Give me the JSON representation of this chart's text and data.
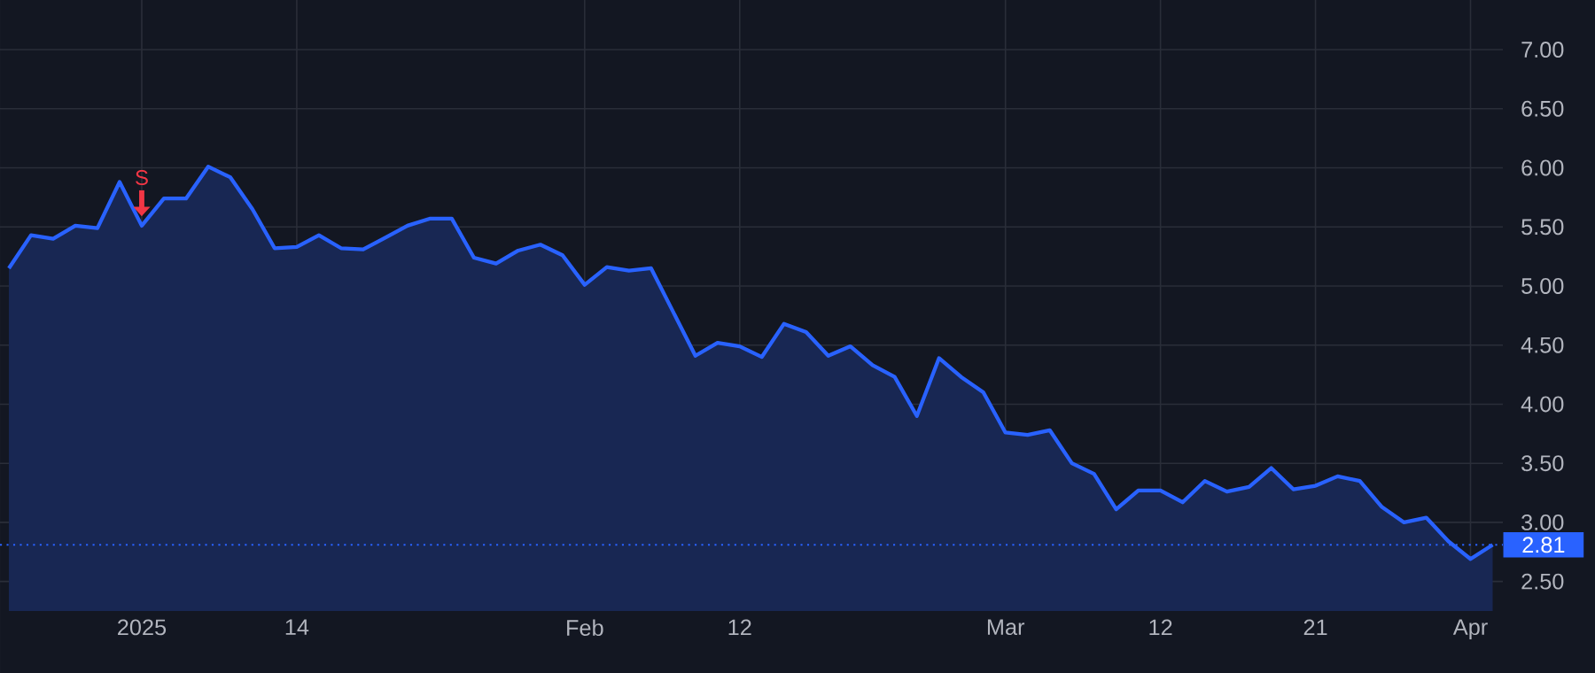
{
  "chart_data": {
    "type": "area",
    "categories": [
      null,
      null,
      null,
      null,
      null,
      null,
      "2025",
      null,
      null,
      null,
      null,
      null,
      null,
      "14",
      null,
      null,
      null,
      null,
      null,
      null,
      null,
      null,
      null,
      null,
      null,
      null,
      "Feb",
      null,
      null,
      null,
      null,
      null,
      null,
      "12",
      null,
      null,
      null,
      null,
      null,
      null,
      null,
      null,
      null,
      null,
      null,
      "Mar",
      null,
      null,
      null,
      null,
      null,
      null,
      "12",
      null,
      null,
      null,
      null,
      null,
      null,
      "21",
      null,
      null,
      null,
      null,
      null,
      null,
      "Apr",
      null
    ],
    "series": [
      {
        "color": "#2962ff",
        "values": [
          5.15,
          5.43,
          5.4,
          5.51,
          5.49,
          5.88,
          5.51,
          5.74,
          5.74,
          6.01,
          5.92,
          5.65,
          5.32,
          5.33,
          5.43,
          5.32,
          5.31,
          5.41,
          5.51,
          5.57,
          5.57,
          5.24,
          5.19,
          5.3,
          5.35,
          5.26,
          5.01,
          5.16,
          5.13,
          5.15,
          4.78,
          4.41,
          4.52,
          4.49,
          4.4,
          4.68,
          4.61,
          4.41,
          4.49,
          4.33,
          4.23,
          3.9,
          4.39,
          4.23,
          4.1,
          3.76,
          3.74,
          3.78,
          3.5,
          3.41,
          3.11,
          3.27,
          3.27,
          3.17,
          3.35,
          3.26,
          3.3,
          3.46,
          3.28,
          3.31,
          3.39,
          3.35,
          3.13,
          3.0,
          3.04,
          2.84,
          2.69,
          2.81
        ]
      }
    ],
    "ylim": [
      2.25,
      7.42
    ],
    "yticks": [
      {
        "value": 2.5,
        "label": "2.50"
      },
      {
        "value": 3,
        "label": "3.00"
      },
      {
        "value": 3.5,
        "label": "3.50"
      },
      {
        "value": 4,
        "label": "4.00"
      },
      {
        "value": 4.5,
        "label": "4.50"
      },
      {
        "value": 5,
        "label": "5.00"
      },
      {
        "value": 5.5,
        "label": "5.50"
      },
      {
        "value": 6,
        "label": "6.00"
      },
      {
        "value": 6.5,
        "label": "6.50"
      },
      {
        "value": 7,
        "label": "7.00"
      }
    ],
    "grid": true,
    "ref_lines": [
      {
        "axis": "y",
        "value": 2.81,
        "label": "2.81",
        "color": "#2962ff",
        "line_style": "dotted"
      }
    ],
    "annotations": [
      {
        "text": "S",
        "x": "2025",
        "y": 5.51
      }
    ]
  }
}
